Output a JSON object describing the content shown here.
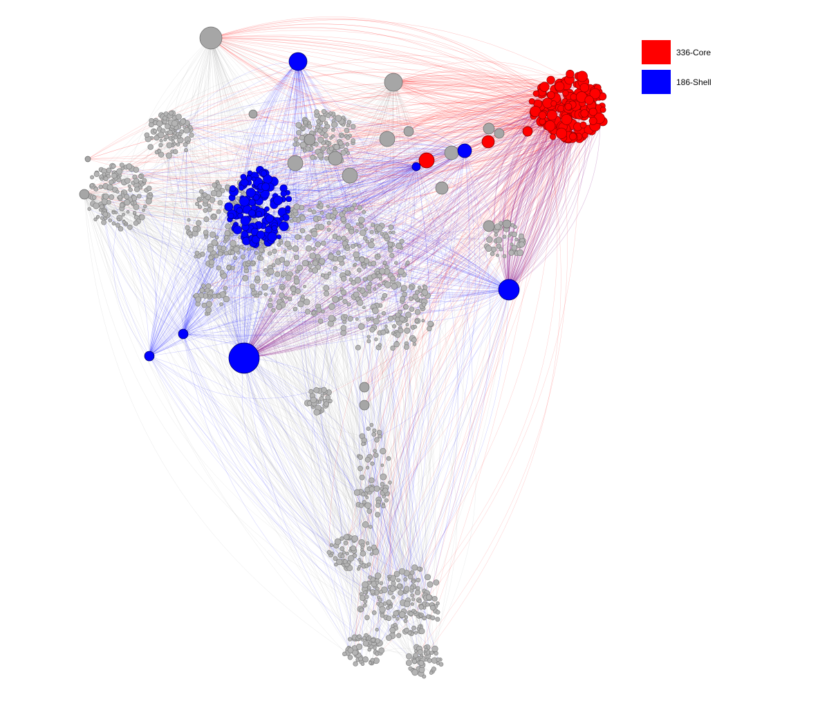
{
  "legend": {
    "items": [
      {
        "label": "336-Core",
        "color": "#ff0000"
      },
      {
        "label": "186-Shell",
        "color": "#0000ff"
      }
    ]
  },
  "colors": {
    "core": "#ff0000",
    "shell": "#0000ff",
    "other": "#a0a0a0",
    "mixed_edge": "#8b1a8b"
  }
}
